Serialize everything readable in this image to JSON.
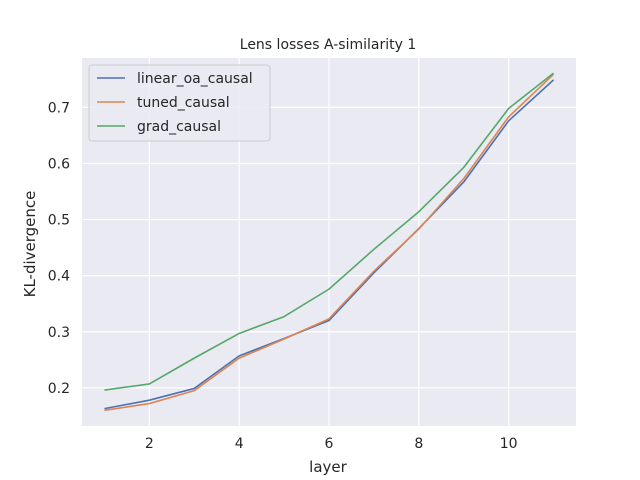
{
  "chart_data": {
    "type": "line",
    "title": "Lens losses A-similarity 1",
    "xlabel": "layer",
    "ylabel": "KL-divergence",
    "xlim": [
      0.5,
      11.5
    ],
    "ylim": [
      0.132,
      0.788
    ],
    "xticks": [
      2,
      4,
      6,
      8,
      10
    ],
    "yticks": [
      0.2,
      0.3,
      0.4,
      0.5,
      0.6,
      0.7
    ],
    "ytick_labels": [
      "0.2",
      "0.3",
      "0.4",
      "0.5",
      "0.6",
      "0.7"
    ],
    "grid": true,
    "legend_position": "top-left",
    "x": [
      1,
      2,
      3,
      4,
      5,
      6,
      7,
      8,
      9,
      10,
      11
    ],
    "series": [
      {
        "name": "linear_oa_causal",
        "color": "#4c72b0",
        "values": [
          0.163,
          0.178,
          0.199,
          0.257,
          0.288,
          0.32,
          0.405,
          0.484,
          0.567,
          0.676,
          0.749
        ]
      },
      {
        "name": "tuned_causal",
        "color": "#dd8452",
        "values": [
          0.16,
          0.172,
          0.195,
          0.253,
          0.287,
          0.323,
          0.408,
          0.483,
          0.573,
          0.683,
          0.759
        ]
      },
      {
        "name": "grad_causal",
        "color": "#55a868",
        "values": [
          0.196,
          0.207,
          0.253,
          0.297,
          0.327,
          0.376,
          0.447,
          0.514,
          0.593,
          0.698,
          0.761
        ]
      }
    ]
  }
}
